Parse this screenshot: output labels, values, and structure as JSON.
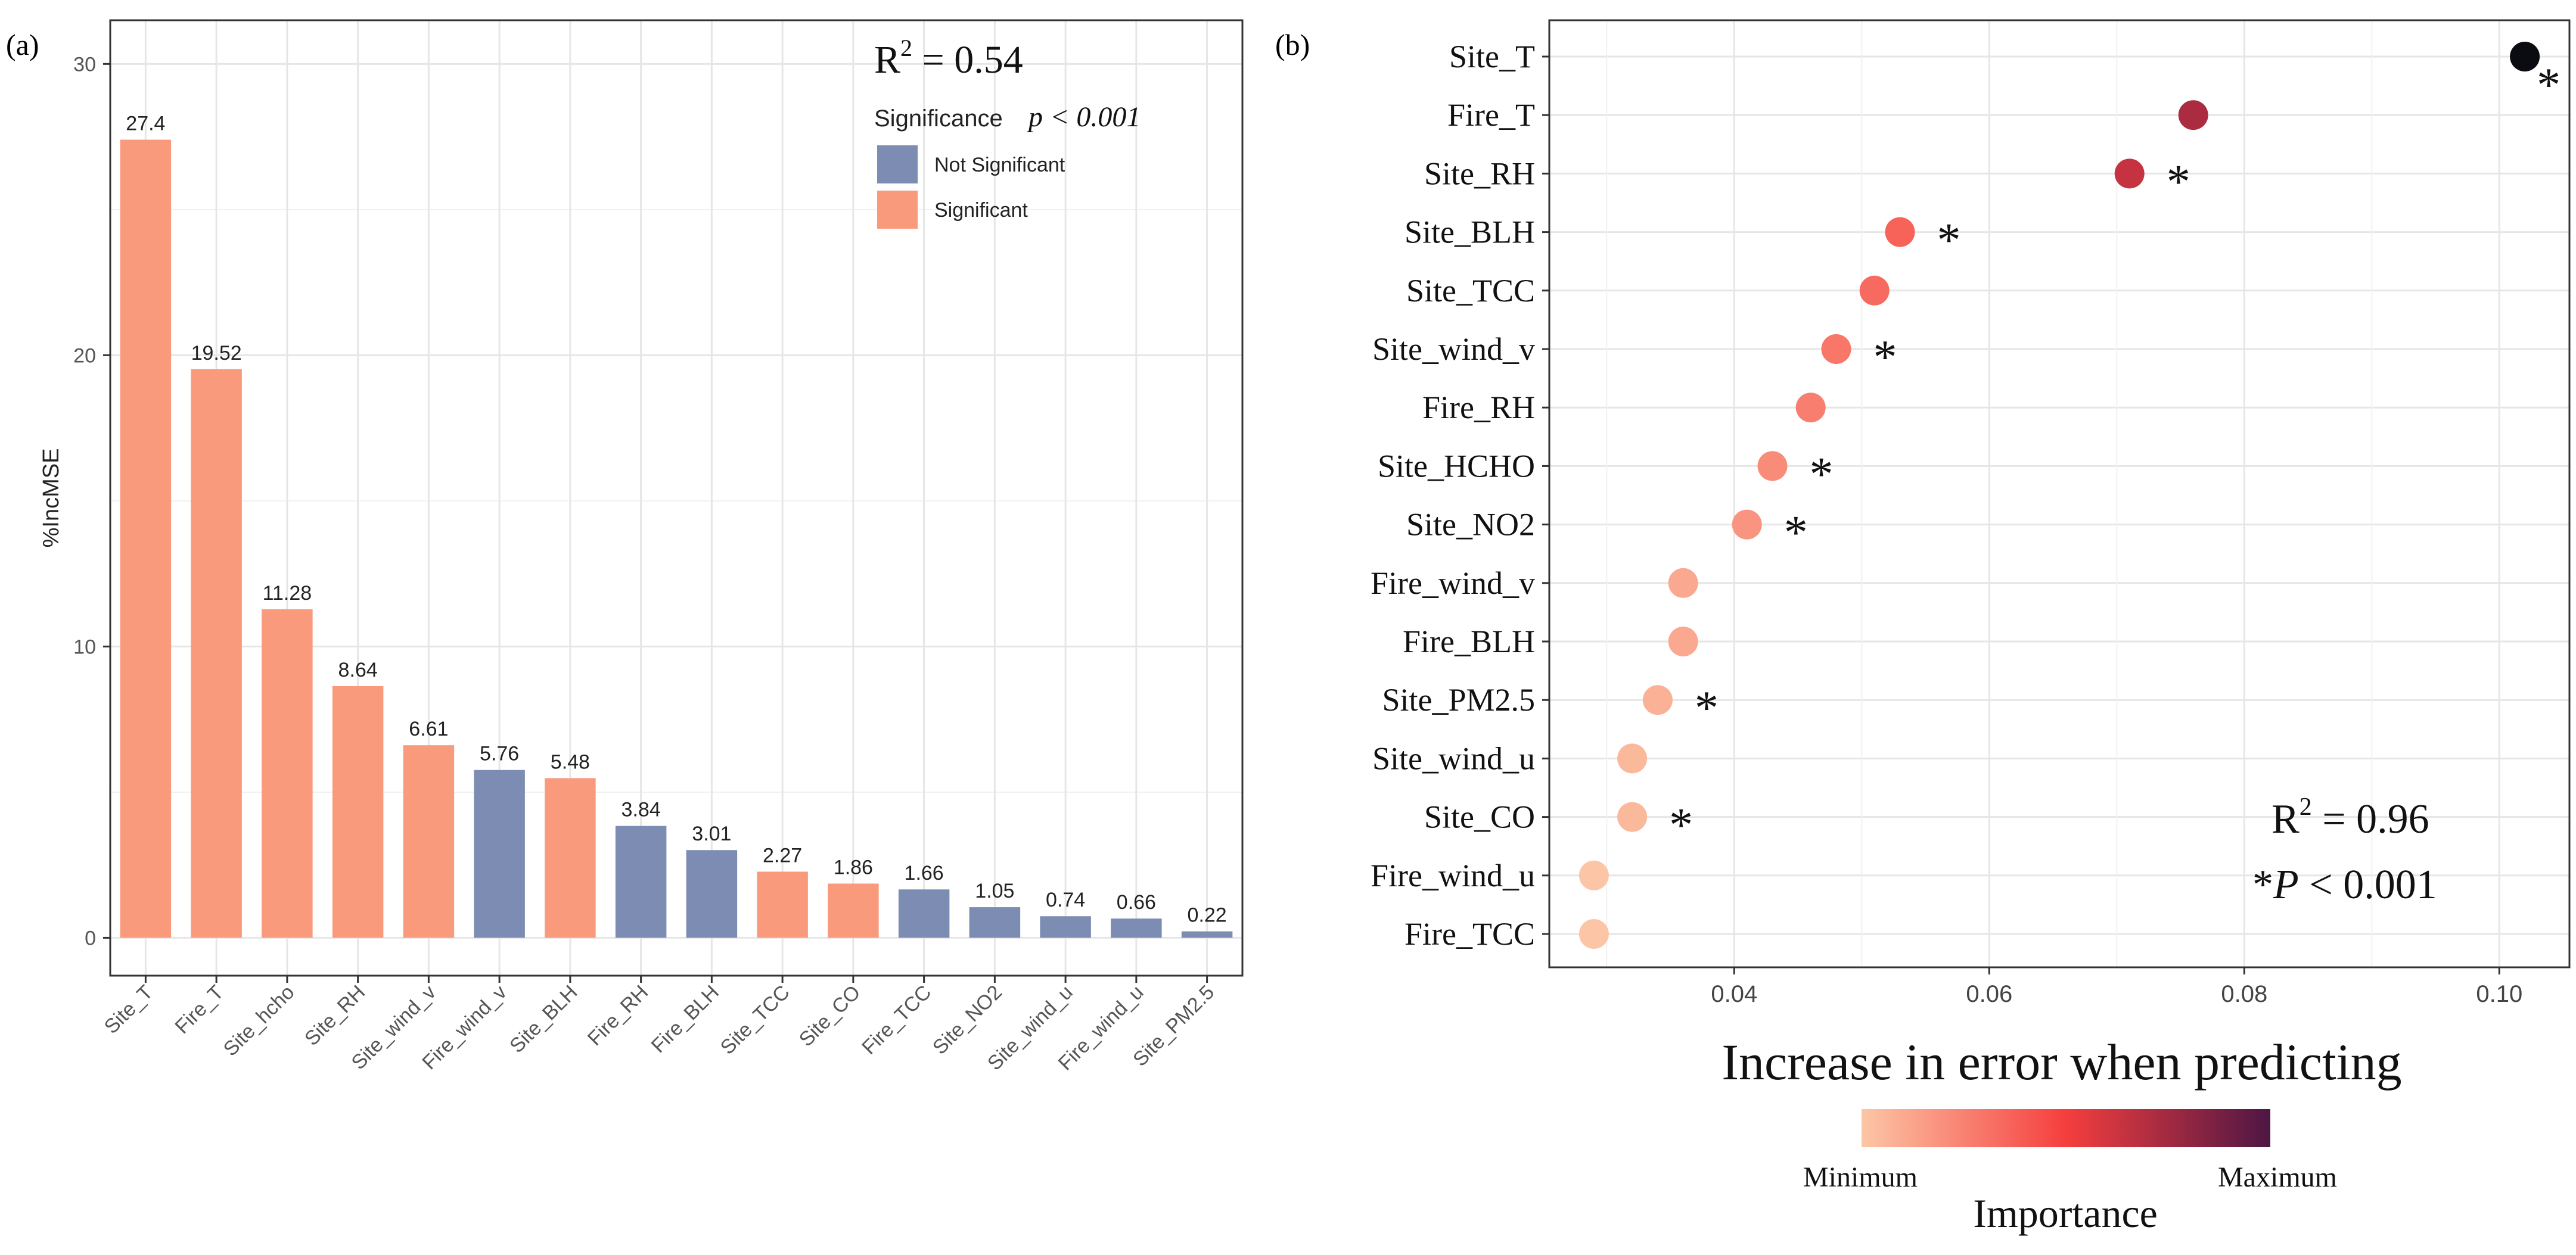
{
  "panel_a_label": "(a)",
  "panel_b_label": "(b)",
  "colors": {
    "significant": "#FA9A7D",
    "not_significant": "#7D8CB2",
    "grid": "#E6E6E6",
    "frame": "#333333",
    "gradient": [
      "#FCC6A6",
      "#F53E3E",
      "#4E1644"
    ]
  },
  "chart_data": [
    {
      "type": "bar",
      "panel": "a",
      "ylabel": "%IncMSE",
      "ylim": [
        -1.3,
        31.5
      ],
      "yticks": [
        0,
        10,
        20,
        30
      ],
      "grid": true,
      "categories": [
        "Site_T",
        "Fire_T",
        "Site_hcho",
        "Site_RH",
        "Site_wind_v",
        "Fire_wind_v",
        "Site_BLH",
        "Fire_RH",
        "Fire_BLH",
        "Site_TCC",
        "Site_CO",
        "Fire_TCC",
        "Site_NO2",
        "Site_wind_u",
        "Fire_wind_u",
        "Site_PM2.5"
      ],
      "values": [
        27.4,
        19.52,
        11.28,
        8.64,
        6.61,
        5.76,
        5.48,
        3.84,
        3.01,
        2.27,
        1.86,
        1.66,
        1.05,
        0.74,
        0.66,
        0.22
      ],
      "value_labels": [
        "27.4",
        "19.52",
        "11.28",
        "8.64",
        "6.61",
        "5.76",
        "5.48",
        "3.84",
        "3.01",
        "2.27",
        "1.86",
        "1.66",
        "1.05",
        "0.74",
        "0.66",
        "0.22"
      ],
      "significance": [
        "Significant",
        "Significant",
        "Significant",
        "Significant",
        "Significant",
        "Not Significant",
        "Significant",
        "Not Significant",
        "Not Significant",
        "Significant",
        "Significant",
        "Not Significant",
        "Not Significant",
        "Not Significant",
        "Not Significant",
        "Not Significant"
      ],
      "r2_prefix": "R",
      "r2_sup": "2",
      "r2_suffix": " = 0.54",
      "legend": {
        "title": "Significance",
        "p_text": "p < 0.001",
        "entries": [
          "Not Significant",
          "Significant"
        ],
        "position": "top-right"
      }
    },
    {
      "type": "scatter",
      "panel": "b",
      "xlabel": "Increase in error when predicting",
      "xlim": [
        0.0255,
        0.1055
      ],
      "xticks": [
        0.04,
        0.06,
        0.08,
        0.1
      ],
      "xtick_labels": [
        "0.04",
        "0.06",
        "0.08",
        "0.10"
      ],
      "grid": true,
      "categories": [
        "Site_T",
        "Fire_T",
        "Site_RH",
        "Site_BLH",
        "Site_TCC",
        "Site_wind_v",
        "Fire_RH",
        "Site_HCHO",
        "Site_NO2",
        "Fire_wind_v",
        "Fire_BLH",
        "Site_PM2.5",
        "Site_wind_u",
        "Site_CO",
        "Fire_wind_u",
        "Fire_TCC"
      ],
      "values": [
        0.102,
        0.076,
        0.071,
        0.053,
        0.051,
        0.048,
        0.046,
        0.043,
        0.041,
        0.036,
        0.036,
        0.034,
        0.032,
        0.032,
        0.029,
        0.029
      ],
      "significant": [
        true,
        false,
        true,
        true,
        false,
        true,
        false,
        true,
        true,
        false,
        false,
        true,
        false,
        true,
        false,
        false
      ],
      "star": "*",
      "r2_prefix": "R",
      "r2_sup": "2",
      "r2_suffix": " = 0.96",
      "p_prefix": "*",
      "p_italic": "P",
      "p_suffix": " < 0.001",
      "colorbar": {
        "title": "Importance",
        "min_label": "Minimum",
        "max_label": "Maximum",
        "position": "bottom"
      }
    }
  ]
}
